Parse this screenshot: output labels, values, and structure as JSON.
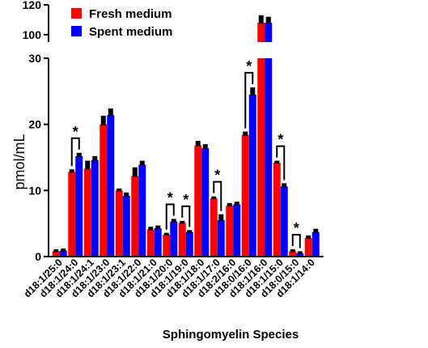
{
  "chart_data": {
    "type": "bar",
    "categories": [
      "d18:1/25:0",
      "d18:1/24:0",
      "d18:1/24:1",
      "d18:1/23:0",
      "d18:1/23:1",
      "d18:1/22:0",
      "d18:1/21:0",
      "d18:1/20:0",
      "d18:1/19:0",
      "d18:1/18:0",
      "d18:1/17:0",
      "d18:2/16:0",
      "d18:0/16:0",
      "d18:1/16:0",
      "d18:1/15:0",
      "d18:0/15:0",
      "d18:1/14:0"
    ],
    "series": [
      {
        "name": "Fresh medium",
        "color": "#ff0000",
        "values": [
          0.8,
          12.8,
          13.3,
          20.0,
          10.0,
          12.2,
          4.1,
          3.3,
          5.1,
          16.8,
          8.8,
          7.7,
          18.4,
          108,
          14.2,
          0.8,
          2.8
        ],
        "errors": [
          0.3,
          0.4,
          1.2,
          1.3,
          0.3,
          1.3,
          0.4,
          0.3,
          0.3,
          0.7,
          0.3,
          0.4,
          0.5,
          5,
          0.3,
          0.3,
          0.4
        ]
      },
      {
        "name": "Spent medium",
        "color": "#0000ff",
        "values": [
          0.9,
          15.2,
          14.6,
          21.4,
          9.2,
          13.9,
          4.3,
          5.3,
          3.7,
          16.4,
          5.5,
          7.9,
          24.5,
          108,
          10.6,
          0.5,
          3.7
        ],
        "errors": [
          0.3,
          0.5,
          0.6,
          1.0,
          0.5,
          0.6,
          0.4,
          0.4,
          0.3,
          0.6,
          0.9,
          0.4,
          1.1,
          4,
          0.5,
          0.3,
          0.5
        ]
      }
    ],
    "ylabel": "pmol/mL",
    "xlabel": "Sphingomyelin Species",
    "ylim": [
      0,
      120
    ],
    "axis_break": {
      "lower_range": [
        0,
        30
      ],
      "upper_range": [
        95,
        120
      ]
    },
    "yticks_lower": [
      "0",
      "10",
      "20",
      "30"
    ],
    "yticks_upper": [
      "100",
      "120"
    ],
    "significance_marker": "*",
    "significant_categories": [
      "d18:1/24:0",
      "d18:1/20:0",
      "d18:1/19:0",
      "d18:1/17:0",
      "d18:0/16:0",
      "d18:1/15:0",
      "d18:0/15:0"
    ],
    "legend_position": "top-left",
    "grid": false
  }
}
